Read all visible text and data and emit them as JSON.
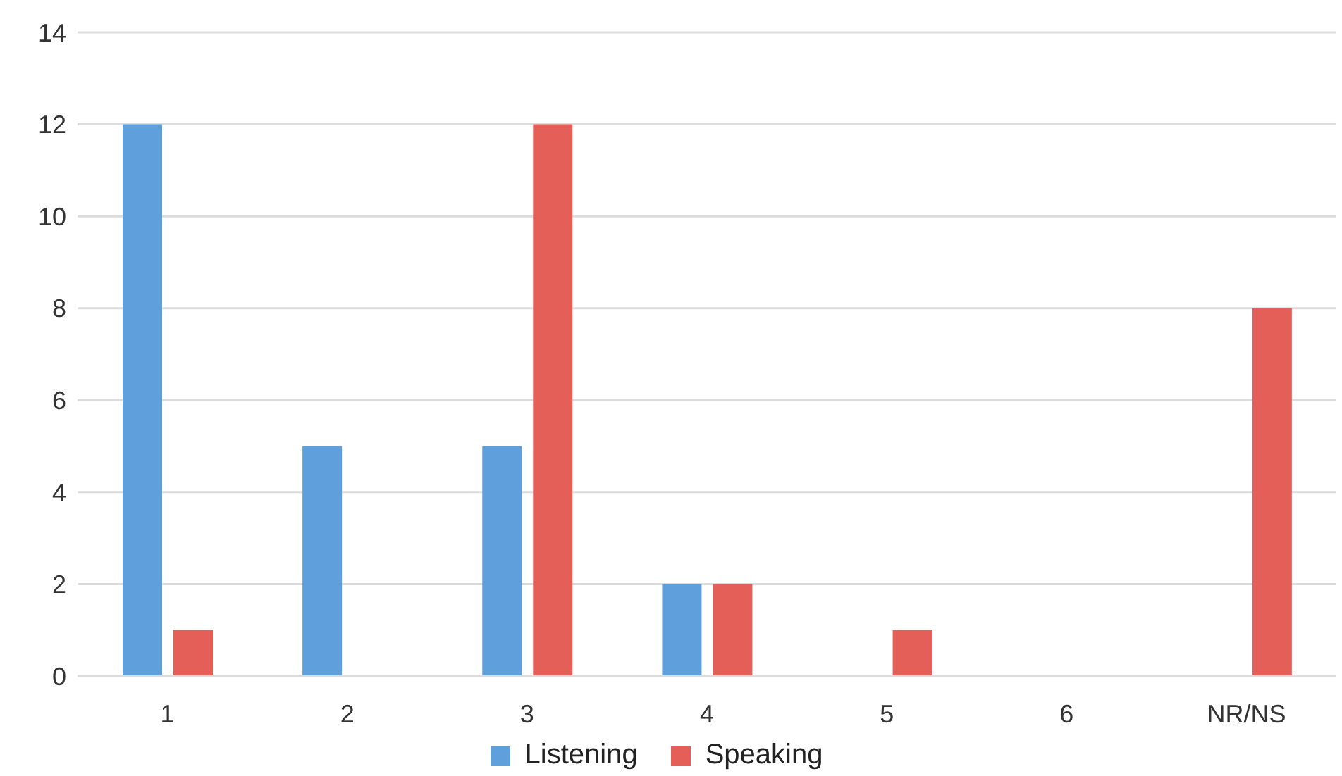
{
  "chart_data": {
    "type": "bar",
    "categories": [
      "1",
      "2",
      "3",
      "4",
      "5",
      "6",
      "NR/NS"
    ],
    "series": [
      {
        "name": "Listening",
        "color": "#5f9fdb",
        "values": [
          12,
          5,
          5,
          2,
          0,
          0,
          0
        ]
      },
      {
        "name": "Speaking",
        "color": "#e45f58",
        "values": [
          1,
          0,
          12,
          2,
          1,
          0,
          8
        ]
      }
    ],
    "ylim": [
      0,
      14
    ],
    "yticks": [
      0,
      2,
      4,
      6,
      8,
      10,
      12,
      14
    ],
    "grid": "y",
    "legend": "bottom"
  }
}
